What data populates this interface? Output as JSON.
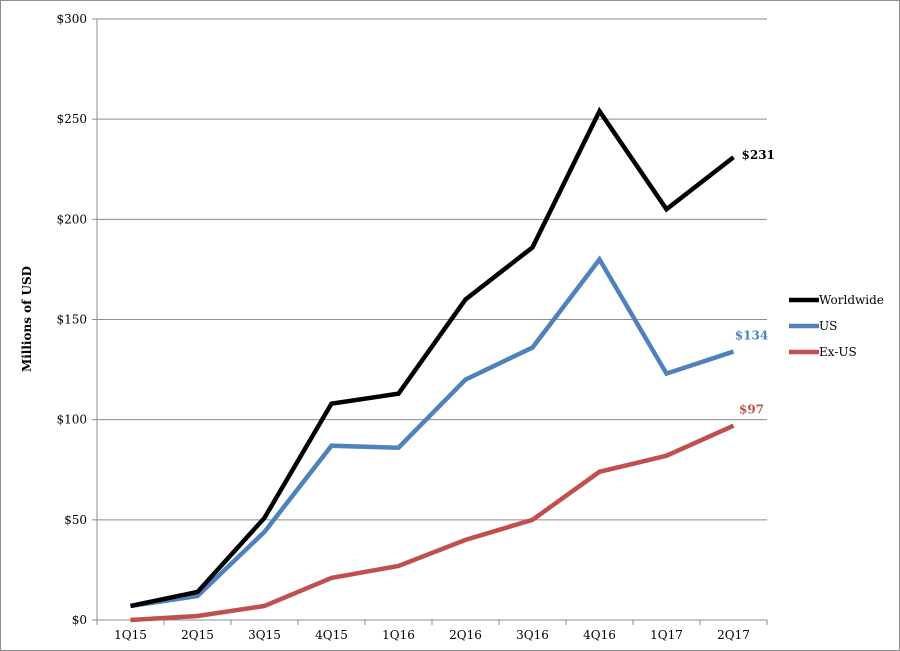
{
  "chart_data": {
    "type": "line",
    "title": "",
    "xlabel": "",
    "ylabel": "Millions of USD",
    "categories": [
      "1Q15",
      "2Q15",
      "3Q15",
      "4Q15",
      "1Q16",
      "2Q16",
      "3Q16",
      "4Q16",
      "1Q17",
      "2Q17"
    ],
    "ylim": [
      0,
      300
    ],
    "yticks": [
      0,
      50,
      100,
      150,
      200,
      250,
      300
    ],
    "ytick_labels": [
      "$0",
      "$50",
      "$100",
      "$150",
      "$200",
      "$250",
      "$300"
    ],
    "grid": true,
    "legend_position": "right",
    "series": [
      {
        "name": "Worldwide",
        "color": "#000000",
        "values": [
          7,
          14,
          51,
          108,
          113,
          160,
          186,
          254,
          205,
          231
        ],
        "end_label": "$231"
      },
      {
        "name": "US",
        "color": "#4f81bd",
        "values": [
          7,
          12,
          44,
          87,
          86,
          120,
          136,
          180,
          123,
          134
        ],
        "end_label": "$134"
      },
      {
        "name": "Ex-US",
        "color": "#c0504d",
        "values": [
          0,
          2,
          7,
          21,
          27,
          40,
          50,
          74,
          82,
          97
        ],
        "end_label": "$97"
      }
    ]
  }
}
